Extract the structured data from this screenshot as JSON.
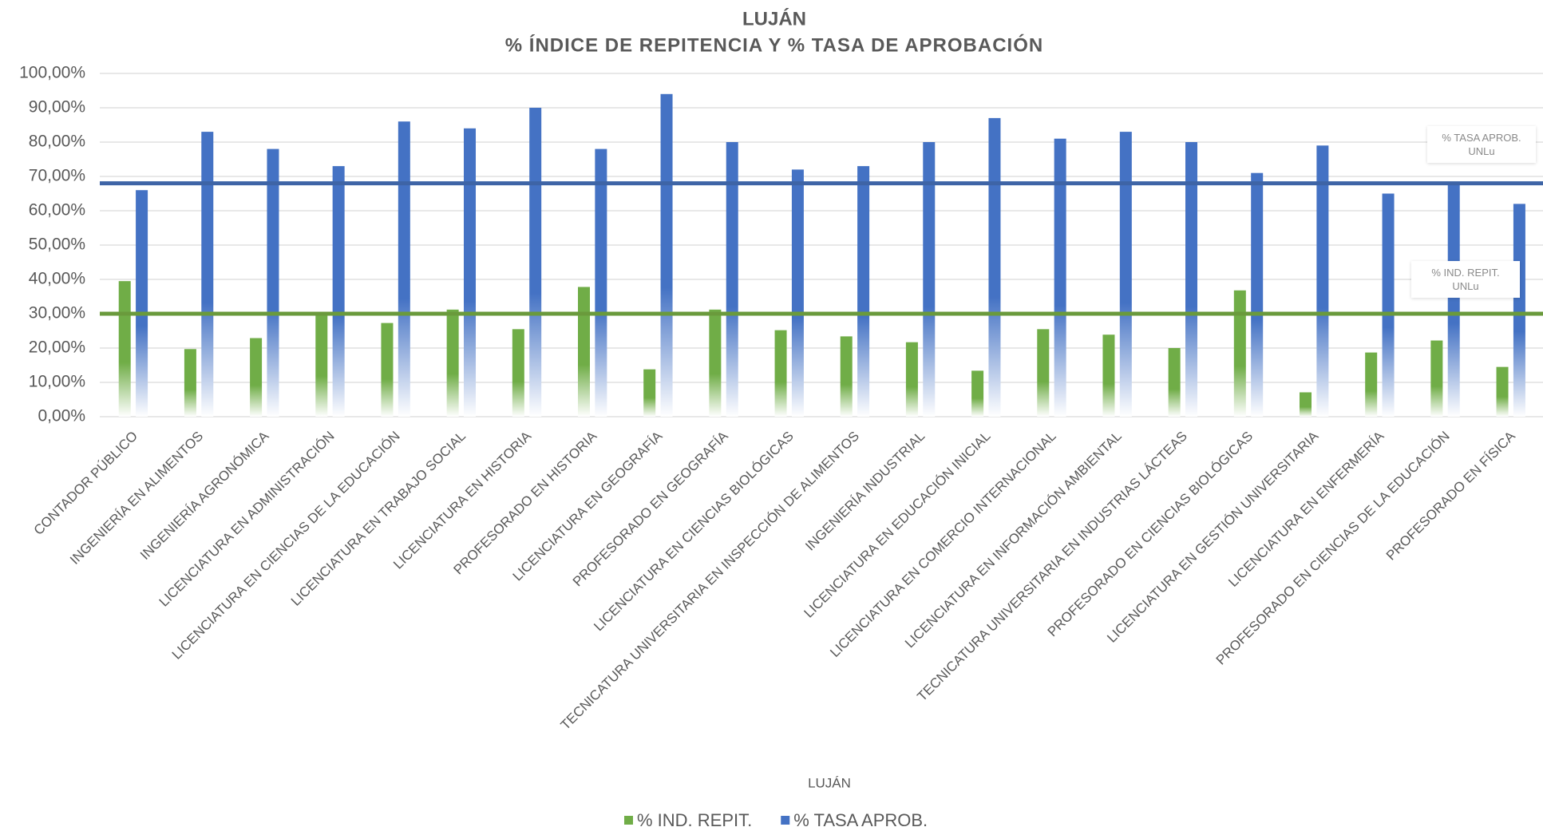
{
  "chart_data": {
    "type": "bar",
    "title": "LUJÁN",
    "subtitle": "% ÍNDICE DE REPITENCIA Y % TASA DE APROBACIÓN",
    "x_label": "LUJÁN",
    "categories": [
      "CONTADOR PÚBLICO",
      "INGENIERÍA EN ALIMENTOS",
      "INGENIERÍA AGRONÓMICA",
      "LICENCIATURA EN ADMINISTRACIÓN",
      "LICENCIATURA EN CIENCIAS DE LA EDUCACIÓN",
      "LICENCIATURA EN TRABAJO SOCIAL",
      "LICENCIATURA EN HISTORIA",
      "PROFESORADO EN HISTORIA",
      "LICENCIATURA EN GEOGRAFÍA",
      "PROFESORADO EN GEOGRAFÍA",
      "LICENCIATURA EN CIENCIAS BIOLÓGICAS",
      "TECNICATURA UNIVERSITARIA EN INSPECCIÓN DE ALIMENTOS",
      "INGENIERÍA INDUSTRIAL",
      "LICENCIATURA EN EDUCACIÓN INICIAL",
      "LICENCIATURA EN COMERCIO INTERNACIONAL",
      "LICENCIATURA EN INFORMACIÓN AMBIENTAL",
      "TECNICATURA UNIVERSITARIA EN INDUSTRIAS LÁCTEAS",
      "PROFESORADO EN CIENCIAS BIOLÓGICAS",
      "LICENCIATURA EN GESTIÓN UNIVERSITARIA",
      "LICENCIATURA EN ENFERMERÍA",
      "PROFESORADO EN CIENCIAS DE LA EDUCACIÓN",
      "PROFESORADO EN FÍSICA"
    ],
    "series": [
      {
        "name": "% IND. REPIT.",
        "color": "#70ad47",
        "values": [
          39.5,
          19.7,
          22.9,
          29.5,
          27.3,
          31.2,
          25.5,
          37.8,
          13.8,
          31.2,
          25.2,
          23.4,
          21.7,
          13.4,
          25.5,
          23.9,
          20.0,
          36.8,
          7.1,
          18.7,
          22.2,
          14.5
        ]
      },
      {
        "name": "% TASA APROB.",
        "color": "#4472c4",
        "values": [
          66,
          83,
          78,
          73,
          86,
          84,
          90,
          78,
          94,
          80,
          72,
          73,
          80,
          87,
          81,
          83,
          80,
          71,
          79,
          65,
          68,
          62
        ]
      }
    ],
    "reference_lines": [
      {
        "name": "% TASA APROB.  UNLu",
        "value": 68,
        "color": "#3e64a6"
      },
      {
        "name": "% IND. REPIT. UNLu",
        "value": 30,
        "color": "#6a9a3c"
      }
    ],
    "ylim": [
      0,
      100
    ],
    "yticks": [
      {
        "value": 0,
        "label": "0,00%"
      },
      {
        "value": 10,
        "label": "10,00%"
      },
      {
        "value": 20,
        "label": "20,00%"
      },
      {
        "value": 30,
        "label": "30,00%"
      },
      {
        "value": 40,
        "label": "40,00%"
      },
      {
        "value": 50,
        "label": "50,00%"
      },
      {
        "value": 60,
        "label": "60,00%"
      },
      {
        "value": 70,
        "label": "70,00%"
      },
      {
        "value": 80,
        "label": "80,00%"
      },
      {
        "value": 90,
        "label": "90,00%"
      },
      {
        "value": 100,
        "label": "100,00%"
      }
    ],
    "grid": true,
    "legend": "bottom"
  }
}
